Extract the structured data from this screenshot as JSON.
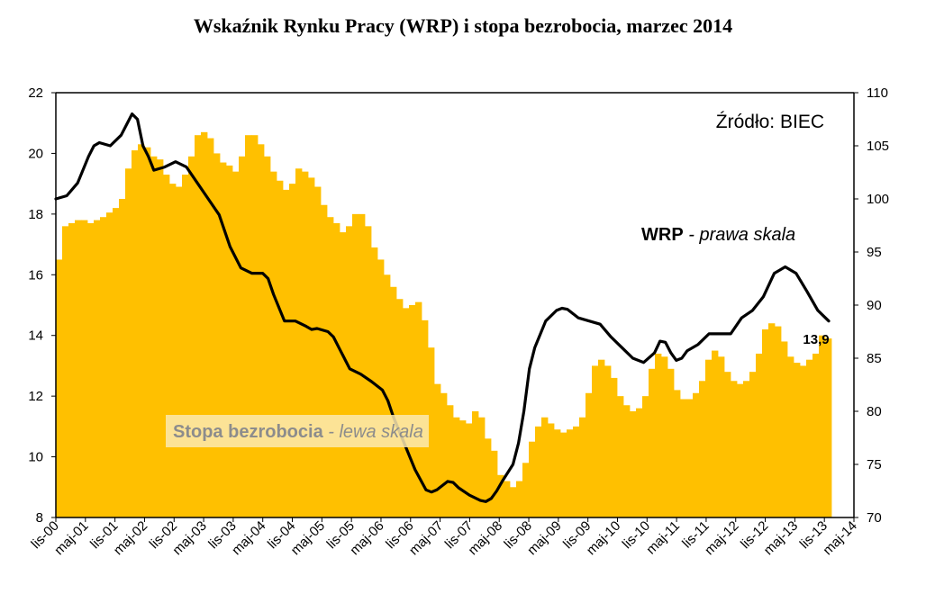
{
  "chart_data": {
    "type": "bar+line",
    "title": "Wskaźnik Rynku Pracy (WRP) i stopa bezrobocia, marzec 2014",
    "source": "Źródło: BIEC",
    "x_tick_labels": [
      "lis-00",
      "maj-01",
      "lis-01",
      "maj-02",
      "lis-02",
      "maj-03",
      "lis-03",
      "maj-04",
      "lis-04",
      "maj-05",
      "lis-05",
      "maj-06",
      "lis-06",
      "maj-07",
      "lis-07",
      "maj-08",
      "lis-08",
      "maj-09",
      "lis-09",
      "maj-10",
      "lis-10",
      "maj-11",
      "lis-11",
      "maj-12",
      "lis-12",
      "maj-13",
      "lis-13",
      "maj-14"
    ],
    "left_axis": {
      "min": 8,
      "max": 22,
      "step": 2
    },
    "right_axis": {
      "min": 70,
      "max": 110,
      "step": 5
    },
    "series": [
      {
        "name": "Stopa bezrobocia",
        "name_suffix": " - lewa skala",
        "type": "bar",
        "axis": "left",
        "color": "#FFC000",
        "anchors": [
          [
            0,
            16.5
          ],
          [
            1,
            17.6
          ],
          [
            3,
            17.8
          ],
          [
            4,
            17.8
          ],
          [
            5,
            17.7
          ],
          [
            7,
            17.9
          ],
          [
            9,
            18.2
          ],
          [
            10,
            18.5
          ],
          [
            11,
            19.5
          ],
          [
            12,
            20.1
          ],
          [
            13,
            20.3
          ],
          [
            14,
            20.2
          ],
          [
            15,
            19.9
          ],
          [
            16,
            19.8
          ],
          [
            17,
            19.3
          ],
          [
            18,
            19.0
          ],
          [
            19,
            18.9
          ],
          [
            20,
            19.3
          ],
          [
            21,
            19.9
          ],
          [
            22,
            20.6
          ],
          [
            23,
            20.7
          ],
          [
            24,
            20.5
          ],
          [
            25,
            20.0
          ],
          [
            26,
            19.7
          ],
          [
            27,
            19.6
          ],
          [
            28,
            19.4
          ],
          [
            29,
            19.9
          ],
          [
            30,
            20.6
          ],
          [
            31,
            20.6
          ],
          [
            32,
            20.3
          ],
          [
            33,
            19.9
          ],
          [
            34,
            19.4
          ],
          [
            35,
            19.1
          ],
          [
            36,
            18.8
          ],
          [
            37,
            19.0
          ],
          [
            38,
            19.5
          ],
          [
            39,
            19.4
          ],
          [
            40,
            19.2
          ],
          [
            41,
            18.9
          ],
          [
            42,
            18.3
          ],
          [
            43,
            17.9
          ],
          [
            44,
            17.7
          ],
          [
            45,
            17.4
          ],
          [
            46,
            17.6
          ],
          [
            47,
            18.0
          ],
          [
            48,
            18.0
          ],
          [
            49,
            17.6
          ],
          [
            50,
            16.9
          ],
          [
            51,
            16.5
          ],
          [
            52,
            16.0
          ],
          [
            53,
            15.6
          ],
          [
            54,
            15.2
          ],
          [
            55,
            14.9
          ],
          [
            56,
            15.0
          ],
          [
            57,
            15.1
          ],
          [
            58,
            14.5
          ],
          [
            59,
            13.6
          ],
          [
            60,
            12.4
          ],
          [
            61,
            12.1
          ],
          [
            62,
            11.7
          ],
          [
            63,
            11.3
          ],
          [
            64,
            11.2
          ],
          [
            65,
            11.1
          ],
          [
            66,
            11.5
          ],
          [
            67,
            11.3
          ],
          [
            68,
            10.6
          ],
          [
            69,
            10.2
          ],
          [
            70,
            9.4
          ],
          [
            71,
            9.2
          ],
          [
            72,
            9.0
          ],
          [
            73,
            9.2
          ],
          [
            74,
            9.8
          ],
          [
            75,
            10.5
          ],
          [
            76,
            11.0
          ],
          [
            77,
            11.3
          ],
          [
            78,
            11.1
          ],
          [
            79,
            10.9
          ],
          [
            80,
            10.8
          ],
          [
            81,
            10.9
          ],
          [
            82,
            11.0
          ],
          [
            83,
            11.3
          ],
          [
            84,
            12.1
          ],
          [
            85,
            13.0
          ],
          [
            86,
            13.2
          ],
          [
            87,
            13.0
          ],
          [
            88,
            12.6
          ],
          [
            89,
            12.0
          ],
          [
            90,
            11.7
          ],
          [
            91,
            11.5
          ],
          [
            92,
            11.6
          ],
          [
            93,
            12.0
          ],
          [
            94,
            12.9
          ],
          [
            95,
            13.4
          ],
          [
            96,
            13.3
          ],
          [
            97,
            12.9
          ],
          [
            98,
            12.2
          ],
          [
            99,
            11.9
          ],
          [
            100,
            11.9
          ],
          [
            101,
            12.1
          ],
          [
            102,
            12.5
          ],
          [
            103,
            13.2
          ],
          [
            104,
            13.5
          ],
          [
            105,
            13.3
          ],
          [
            106,
            12.8
          ],
          [
            107,
            12.5
          ],
          [
            108,
            12.4
          ],
          [
            109,
            12.5
          ],
          [
            110,
            12.8
          ],
          [
            111,
            13.4
          ],
          [
            112,
            14.2
          ],
          [
            113,
            14.4
          ],
          [
            114,
            14.3
          ],
          [
            115,
            13.8
          ],
          [
            116,
            13.3
          ],
          [
            117,
            13.1
          ],
          [
            118,
            13.0
          ],
          [
            119,
            13.2
          ],
          [
            120,
            13.4
          ],
          [
            121,
            14.0
          ],
          [
            122,
            13.9
          ]
        ]
      },
      {
        "name": "WRP",
        "name_suffix": " - prawa skala",
        "type": "line",
        "axis": "right",
        "color": "#000000",
        "anchors": [
          [
            0,
            100
          ],
          [
            2,
            100.3
          ],
          [
            4,
            101.5
          ],
          [
            6,
            104
          ],
          [
            7,
            105
          ],
          [
            8,
            105.3
          ],
          [
            10,
            105
          ],
          [
            12,
            106
          ],
          [
            14,
            108
          ],
          [
            15,
            107.5
          ],
          [
            16,
            105
          ],
          [
            17,
            104
          ],
          [
            18,
            102.7
          ],
          [
            20,
            103
          ],
          [
            22,
            103.5
          ],
          [
            24,
            103
          ],
          [
            26,
            101.5
          ],
          [
            28,
            100
          ],
          [
            30,
            98.5
          ],
          [
            32,
            95.5
          ],
          [
            34,
            93.5
          ],
          [
            36,
            93
          ],
          [
            38,
            93
          ],
          [
            39,
            92.5
          ],
          [
            40,
            91
          ],
          [
            42,
            88.5
          ],
          [
            44,
            88.5
          ],
          [
            46,
            88
          ],
          [
            47,
            87.7
          ],
          [
            48,
            87.8
          ],
          [
            50,
            87.5
          ],
          [
            51,
            87
          ],
          [
            52,
            86
          ],
          [
            54,
            84
          ],
          [
            56,
            83.5
          ],
          [
            58,
            82.8
          ],
          [
            60,
            82
          ],
          [
            61,
            81
          ],
          [
            62,
            79.5
          ],
          [
            64,
            77
          ],
          [
            66,
            74.5
          ],
          [
            68,
            72.6
          ],
          [
            69,
            72.4
          ],
          [
            70,
            72.6
          ],
          [
            72,
            73.4
          ],
          [
            73,
            73.3
          ],
          [
            74,
            72.8
          ],
          [
            76,
            72.1
          ],
          [
            78,
            71.6
          ],
          [
            79,
            71.5
          ],
          [
            80,
            71.8
          ],
          [
            81,
            72.5
          ],
          [
            82,
            73.4
          ],
          [
            84,
            75
          ],
          [
            85,
            77
          ],
          [
            86,
            80
          ],
          [
            87,
            84
          ],
          [
            88,
            86
          ],
          [
            90,
            88.5
          ],
          [
            92,
            89.5
          ],
          [
            93,
            89.7
          ],
          [
            94,
            89.6
          ],
          [
            96,
            88.8
          ],
          [
            98,
            88.5
          ],
          [
            100,
            88.2
          ],
          [
            102,
            87
          ],
          [
            104,
            86
          ],
          [
            106,
            85
          ],
          [
            108,
            84.6
          ],
          [
            110,
            85.5
          ],
          [
            111,
            86.6
          ],
          [
            112,
            86.5
          ],
          [
            113,
            85.5
          ],
          [
            114,
            84.8
          ],
          [
            115,
            85
          ],
          [
            116,
            85.7
          ],
          [
            118,
            86.3
          ],
          [
            120,
            87.3
          ],
          [
            122,
            87.3
          ],
          [
            124,
            87.3
          ],
          [
            126,
            88.8
          ],
          [
            128,
            89.5
          ],
          [
            130,
            90.8
          ],
          [
            132,
            93
          ],
          [
            133,
            93.3
          ],
          [
            134,
            93.6
          ],
          [
            136,
            93
          ],
          [
            138,
            91.3
          ],
          [
            140,
            89.5
          ],
          [
            142,
            88.5
          ]
        ]
      }
    ],
    "annotation": {
      "text": "13,9"
    }
  }
}
